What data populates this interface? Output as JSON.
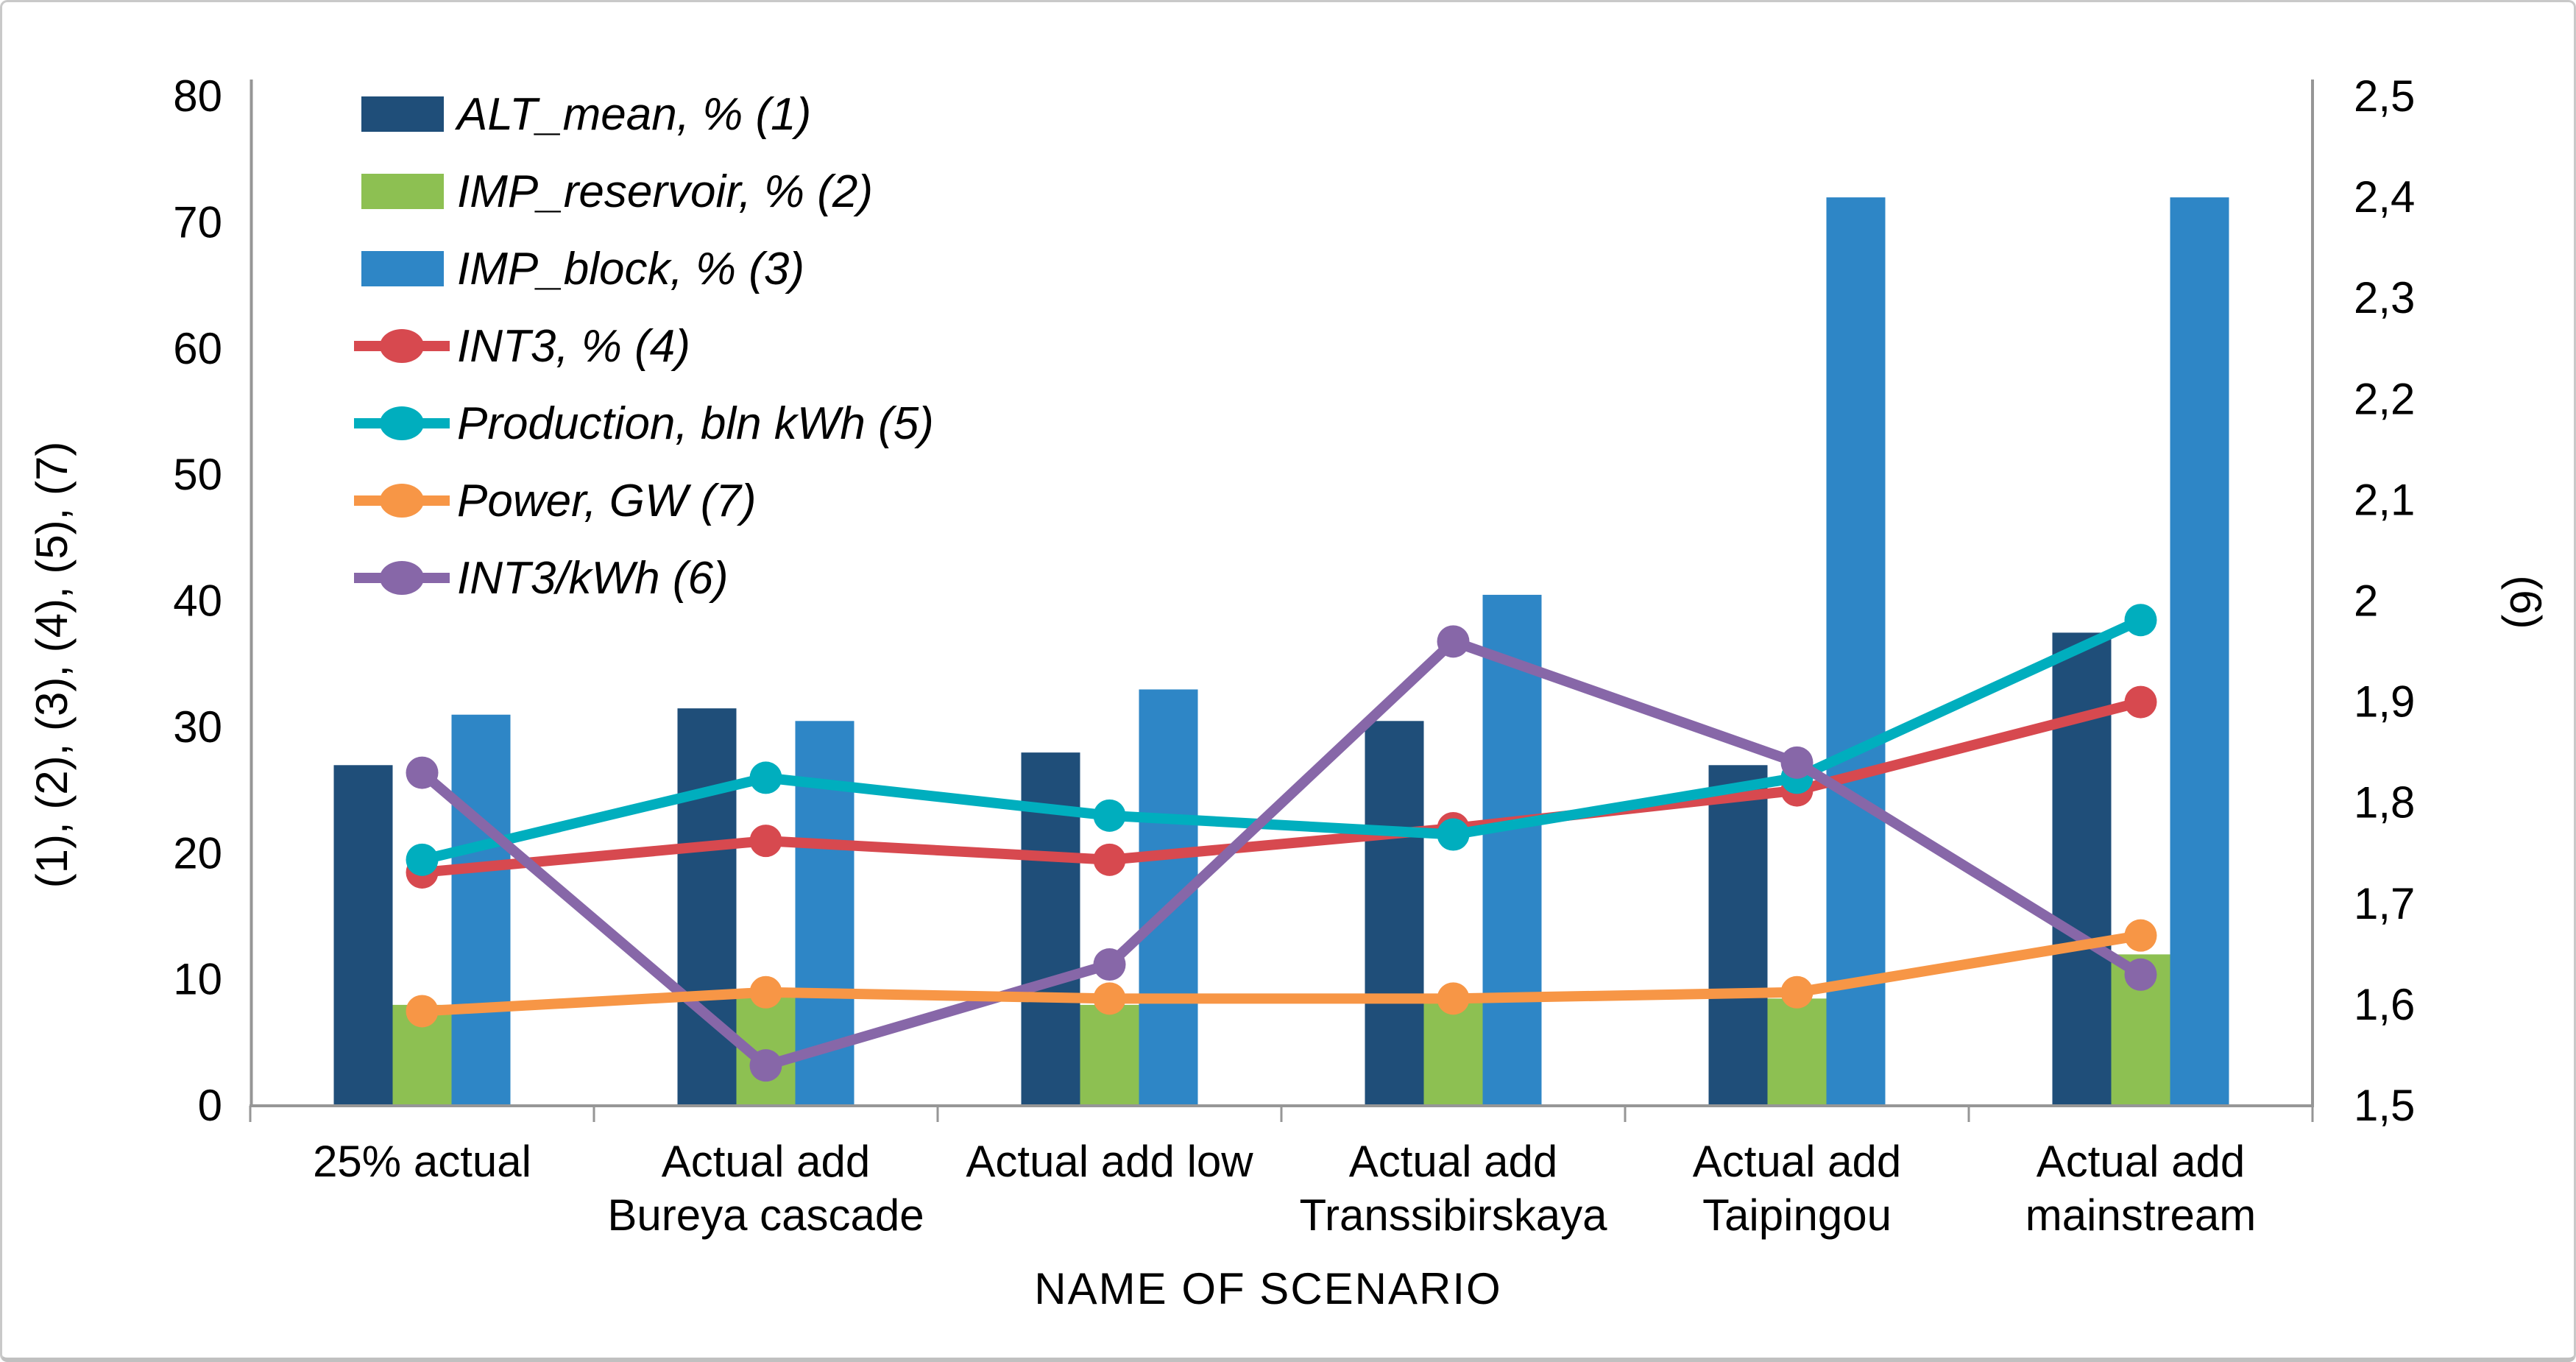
{
  "chart_data": {
    "type": "bar+line combo (dual axis)",
    "xlabel": "NAME OF SCENARIO",
    "ylabel_left": "(1), (2), (3), (4), (5), (7)",
    "ylabel_right": "(6)",
    "grid": "off",
    "legend_position": "top-left inside plot",
    "categories": [
      [
        "25% actual"
      ],
      [
        "Actual add",
        "Bureya cascade"
      ],
      [
        "Actual add low"
      ],
      [
        "Actual add",
        "Transsibirskaya"
      ],
      [
        "Actual add",
        "Taipingou"
      ],
      [
        "Actual add",
        "mainstream"
      ]
    ],
    "left_axis": {
      "min": 0,
      "max": 80,
      "step": 10,
      "tick_labels": [
        "0",
        "10",
        "20",
        "30",
        "40",
        "50",
        "60",
        "70",
        "80"
      ]
    },
    "right_axis": {
      "min": 1.5,
      "max": 2.5,
      "step": 0.1,
      "tick_labels": [
        "1,5",
        "1,6",
        "1,7",
        "1,8",
        "1,9",
        "2",
        "2,1",
        "2,2",
        "2,3",
        "2,4",
        "2,5"
      ]
    },
    "series": [
      {
        "name": "ALT_mean, % (1)",
        "short": "alt-mean",
        "type": "bar",
        "axis": "left",
        "color": "#1F4E79",
        "values": [
          27,
          31.5,
          28,
          30.5,
          27,
          37.5
        ]
      },
      {
        "name": "IMP_reservoir, % (2)",
        "short": "imp-reservoir",
        "type": "bar",
        "axis": "left",
        "color": "#8DC052",
        "values": [
          8,
          9,
          8,
          8.5,
          8.5,
          12
        ]
      },
      {
        "name": "IMP_block, % (3)",
        "short": "imp-block",
        "type": "bar",
        "axis": "left",
        "color": "#2E86C6",
        "values": [
          31,
          30.5,
          33,
          40.5,
          72,
          72
        ]
      },
      {
        "name": "INT3, % (4)",
        "short": "int3",
        "type": "line",
        "axis": "left",
        "color": "#D7494F",
        "values": [
          18.5,
          21,
          19.5,
          22,
          25,
          32
        ]
      },
      {
        "name": "Production, bln kWh (5)",
        "short": "production",
        "type": "line",
        "axis": "left",
        "color": "#00AEBE",
        "values": [
          19.5,
          26,
          23,
          21.5,
          26,
          38.5
        ]
      },
      {
        "name": "INT3/kWh (6)",
        "short": "int3-per-kwh",
        "type": "line",
        "axis": "right",
        "color": "#8767A8",
        "values": [
          1.83,
          1.54,
          1.64,
          1.96,
          1.84,
          1.63
        ]
      },
      {
        "name": "Power, GW (7)",
        "short": "power",
        "type": "line",
        "axis": "left",
        "color": "#F79646",
        "values": [
          7.5,
          9,
          8.5,
          8.5,
          9,
          13.5
        ]
      }
    ],
    "legend_order": [
      0,
      1,
      2,
      3,
      4,
      6,
      5
    ],
    "axis_color": "#969696",
    "text_color": "#000000"
  }
}
